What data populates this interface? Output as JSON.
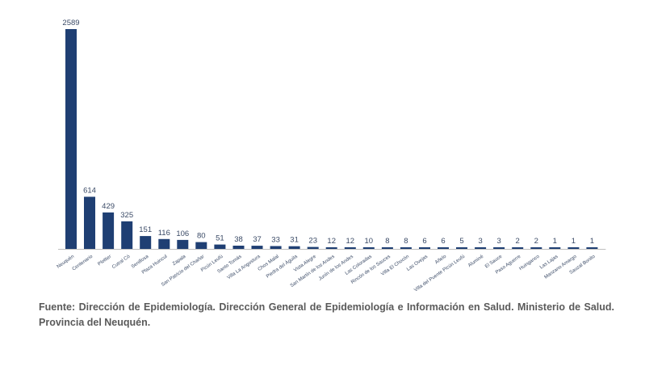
{
  "chart_data": {
    "type": "bar",
    "title": "",
    "xlabel": "",
    "ylabel": "",
    "bar_color": "#1f3f73",
    "label_color": "#3a4a66",
    "axis_color": "#bfbfbf",
    "ylim": [
      0,
      2589
    ],
    "grid": false,
    "categories": [
      "Neuquén",
      "Centenario",
      "Plottier",
      "Cutral Có",
      "Senillosa",
      "Plaza Huincul",
      "Zapala",
      "San Patricio del Chañar",
      "Picún Leufú",
      "Santo Tomás",
      "Villa La Angostura",
      "Chos Malal",
      "Piedra del Águila",
      "Vista Alegre",
      "San Martín de los Andes",
      "Junín de los Andes",
      "Las Coloradas",
      "Rincón de los Sauces",
      "Villa El Chocón",
      "Las Ovejas",
      "Añelo",
      "Villa del Puente Picún Leufú",
      "Aluminé",
      "El Sauce",
      "Paso Aguerre",
      "Huinganco",
      "Las Lajas",
      "Manzano Amargo",
      "Sauzal Bonito"
    ],
    "values": [
      2589,
      614,
      429,
      325,
      151,
      116,
      106,
      80,
      51,
      38,
      37,
      33,
      31,
      23,
      12,
      12,
      10,
      8,
      8,
      6,
      6,
      5,
      3,
      3,
      2,
      2,
      1,
      1,
      1
    ]
  },
  "source_text": "Fuente: Dirección de Epidemiología. Dirección General de Epidemiología e Información en Salud. Ministerio de Salud. Provincia del Neuquén."
}
